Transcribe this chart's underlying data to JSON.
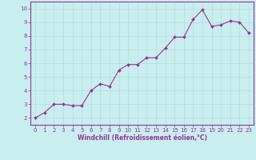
{
  "x": [
    0,
    1,
    2,
    3,
    4,
    5,
    6,
    7,
    8,
    9,
    10,
    11,
    12,
    13,
    14,
    15,
    16,
    17,
    18,
    19,
    20,
    21,
    22,
    23
  ],
  "y": [
    2.0,
    2.4,
    3.0,
    3.0,
    2.9,
    2.9,
    4.0,
    4.5,
    4.3,
    5.5,
    5.9,
    5.9,
    6.4,
    6.4,
    7.1,
    7.9,
    7.9,
    9.2,
    9.9,
    8.7,
    8.8,
    9.1,
    9.0,
    8.2
  ],
  "line_color": "#993399",
  "marker_color": "#993399",
  "bg_color": "#c8eef0",
  "grid_color": "#aadddd",
  "xlabel": "Windchill (Refroidissement éolien,°C)",
  "xlim": [
    -0.5,
    23.5
  ],
  "ylim": [
    1.5,
    10.5
  ],
  "yticks": [
    2,
    3,
    4,
    5,
    6,
    7,
    8,
    9,
    10
  ],
  "xticks": [
    0,
    1,
    2,
    3,
    4,
    5,
    6,
    7,
    8,
    9,
    10,
    11,
    12,
    13,
    14,
    15,
    16,
    17,
    18,
    19,
    20,
    21,
    22,
    23
  ],
  "tick_color": "#993399",
  "label_fontsize": 5.0,
  "xlabel_fontsize": 5.5
}
